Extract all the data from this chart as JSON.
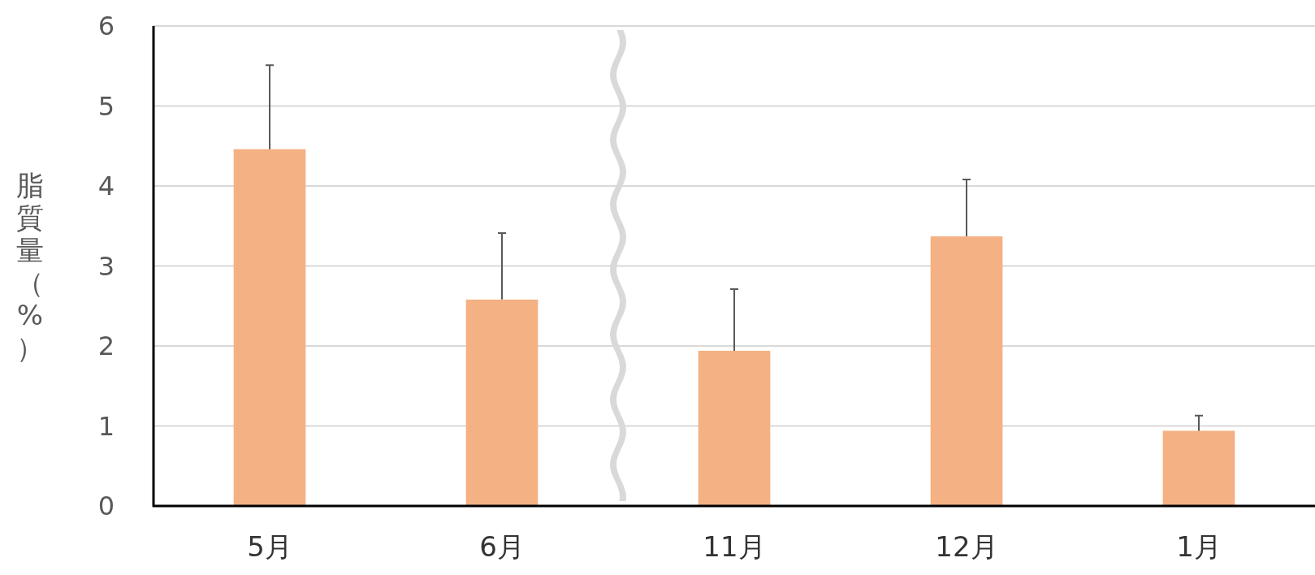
{
  "chart_data": {
    "type": "bar",
    "ylabel": "脂質量（%）",
    "categories": [
      "5月",
      "6月",
      "11月",
      "12月",
      "1月"
    ],
    "values": [
      4.46,
      2.58,
      1.94,
      3.37,
      0.94
    ],
    "errors": [
      [
        4.46,
        5.51
      ],
      [
        2.58,
        3.41
      ],
      [
        1.94,
        2.71
      ],
      [
        3.37,
        4.08
      ],
      [
        0.94,
        1.13
      ]
    ],
    "color": "#f4b183",
    "ylim": [
      0,
      6
    ],
    "yticks": [
      0,
      1,
      2,
      3,
      4,
      5,
      6
    ],
    "grid": "y"
  }
}
